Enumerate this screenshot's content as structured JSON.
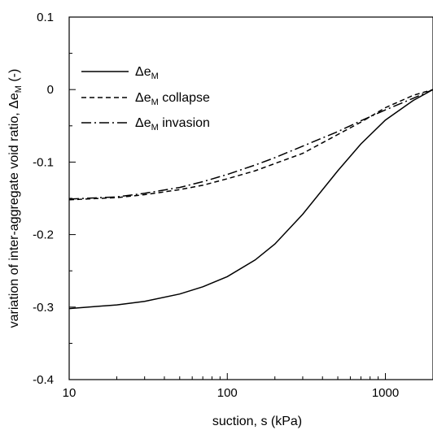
{
  "chart_data": {
    "type": "line",
    "title": "",
    "xlabel": "suction, s (kPa)",
    "ylabel_main": "variation of inter-aggregate void ratio, Δe",
    "ylabel_sub": "M",
    "ylabel_tail": " (-)",
    "xscale": "log",
    "xlim": [
      10,
      2000
    ],
    "ylim": [
      -0.4,
      0.1
    ],
    "xticks": [
      10,
      100,
      1000
    ],
    "xtick_labels": [
      "10",
      "100",
      "1000"
    ],
    "yticks": [
      0.1,
      0,
      -0.1,
      -0.2,
      -0.3,
      -0.4
    ],
    "ytick_labels": [
      "0.1",
      "0",
      "-0.1",
      "-0.2",
      "-0.3",
      "-0.4"
    ],
    "grid": false,
    "legend_position": "top-left",
    "series": [
      {
        "legend_main": "Δe",
        "legend_sub": "M",
        "legend_tail": "",
        "style": "solid",
        "x": [
          10,
          20,
          30,
          50,
          70,
          100,
          150,
          200,
          300,
          500,
          700,
          1000,
          1500,
          2000
        ],
        "y": [
          -0.302,
          -0.297,
          -0.292,
          -0.282,
          -0.272,
          -0.258,
          -0.235,
          -0.213,
          -0.172,
          -0.112,
          -0.075,
          -0.042,
          -0.015,
          0.0
        ]
      },
      {
        "legend_main": "Δe",
        "legend_sub": "M",
        "legend_tail": " collapse",
        "style": "dashed",
        "x": [
          10,
          20,
          30,
          50,
          70,
          100,
          150,
          200,
          300,
          500,
          700,
          1000,
          1500,
          2000
        ],
        "y": [
          -0.152,
          -0.149,
          -0.145,
          -0.138,
          -0.132,
          -0.123,
          -0.112,
          -0.102,
          -0.088,
          -0.062,
          -0.045,
          -0.025,
          -0.008,
          0.0
        ]
      },
      {
        "legend_main": "Δe",
        "legend_sub": "M",
        "legend_tail": " invasion",
        "style": "dashdot",
        "x": [
          10,
          20,
          30,
          50,
          70,
          100,
          150,
          200,
          300,
          500,
          700,
          1000,
          1500,
          2000
        ],
        "y": [
          -0.151,
          -0.148,
          -0.143,
          -0.135,
          -0.127,
          -0.117,
          -0.104,
          -0.094,
          -0.078,
          -0.058,
          -0.043,
          -0.028,
          -0.012,
          0.0
        ]
      }
    ]
  }
}
